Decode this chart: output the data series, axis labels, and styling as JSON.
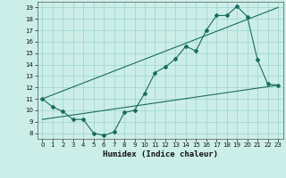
{
  "xlabel": "Humidex (Indice chaleur)",
  "bg_color": "#cceee8",
  "grid_color": "#99d4cc",
  "line_color": "#1a6b60",
  "xlim": [
    -0.5,
    23.5
  ],
  "ylim": [
    7.5,
    19.5
  ],
  "xticks": [
    0,
    1,
    2,
    3,
    4,
    5,
    6,
    7,
    8,
    9,
    10,
    11,
    12,
    13,
    14,
    15,
    16,
    17,
    18,
    19,
    20,
    21,
    22,
    23
  ],
  "yticks": [
    8,
    9,
    10,
    11,
    12,
    13,
    14,
    15,
    16,
    17,
    18,
    19
  ],
  "line1_x": [
    0,
    1,
    2,
    3,
    4,
    5,
    6,
    7,
    8,
    9,
    10,
    11,
    12,
    13,
    14,
    15,
    16,
    17,
    18,
    19,
    20,
    21,
    22,
    23
  ],
  "line1_y": [
    11.0,
    10.3,
    9.9,
    9.2,
    9.2,
    8.0,
    7.8,
    8.1,
    9.8,
    10.0,
    11.5,
    13.3,
    13.8,
    14.5,
    15.6,
    15.2,
    17.0,
    18.3,
    18.3,
    19.1,
    18.2,
    14.4,
    12.3,
    12.2
  ],
  "line2_x": [
    0,
    23
  ],
  "line2_y": [
    11.0,
    19.0
  ],
  "line3_x": [
    0,
    23
  ],
  "line3_y": [
    9.2,
    12.2
  ],
  "marker": "D",
  "markersize": 2.0,
  "linewidth": 0.8,
  "tick_fontsize": 5.0,
  "xlabel_fontsize": 6.5
}
